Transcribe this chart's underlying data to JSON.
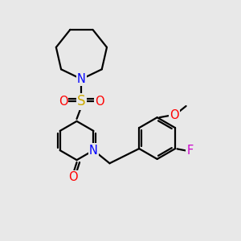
{
  "background_color": "#e8e8e8",
  "bond_color": "#000000",
  "bond_width": 1.6,
  "atom_colors": {
    "N": "#0000ff",
    "O": "#ff0000",
    "S": "#ccaa00",
    "F": "#cc00cc",
    "C": "#000000"
  },
  "font_size_atom": 10.5
}
